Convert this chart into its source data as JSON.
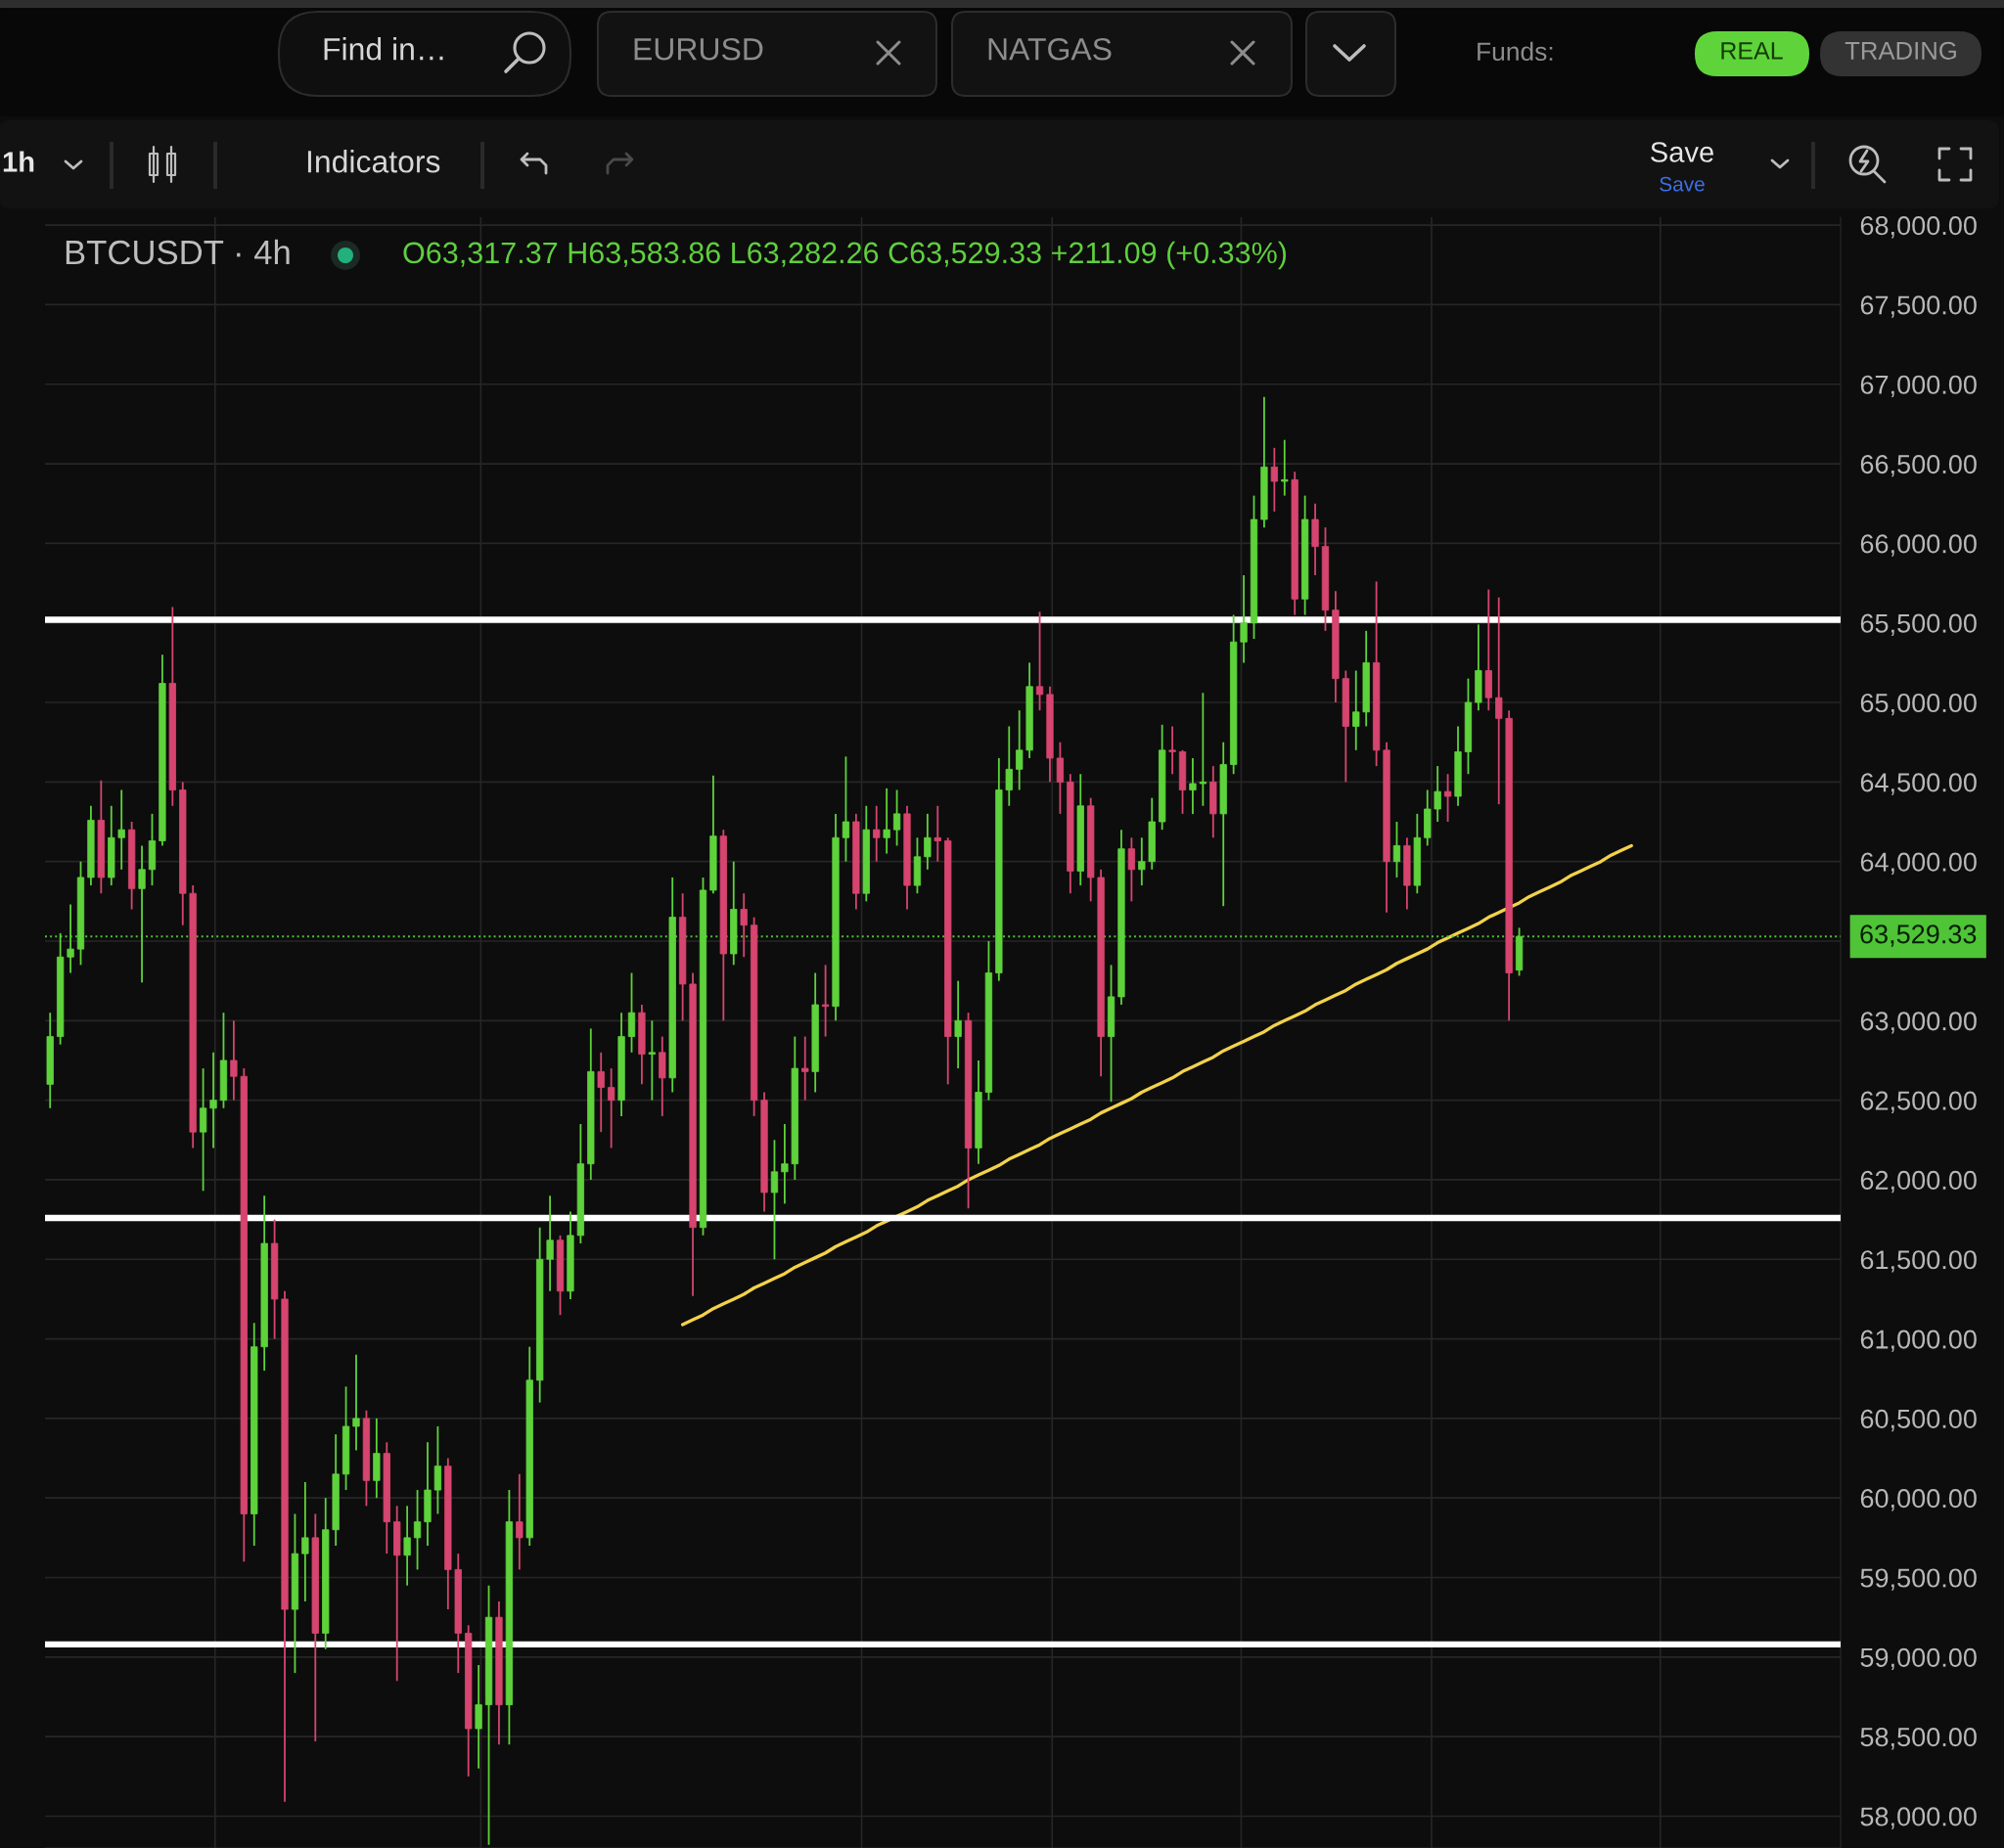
{
  "chart_data": {
    "type": "candlestick",
    "title": "BTCUSDT · 4h",
    "annotations": [
      "O63,317.37 H63,583.86 L63,282.26 C63,529.33 +211.09 (+0.33%)",
      "Find in…",
      "EURUSD",
      "NATGAS",
      "Funds:",
      "REAL",
      "TRADING",
      "1h",
      "Indicators",
      "Save",
      "Save"
    ],
    "categories": [
      null,
      null,
      null,
      null,
      null,
      null,
      null,
      null,
      null,
      null,
      null,
      null,
      null,
      null,
      null,
      null,
      null,
      null,
      null,
      null,
      null,
      null,
      null,
      null,
      null,
      null,
      null,
      null,
      null,
      null,
      null,
      null,
      null,
      null,
      null,
      null,
      null,
      null,
      null,
      null,
      null,
      null,
      null,
      null,
      null,
      null,
      null,
      null,
      null,
      null,
      null,
      null,
      null,
      null,
      null,
      null,
      null,
      null,
      null,
      null,
      null,
      null,
      null,
      null,
      null,
      null,
      null,
      null,
      null,
      null,
      null,
      null,
      null,
      null,
      null,
      null,
      null,
      null,
      null,
      null,
      null,
      null,
      null,
      null,
      null,
      null,
      null,
      null,
      null,
      null,
      null,
      null,
      null,
      null,
      null,
      null,
      null,
      null,
      null,
      null,
      null,
      null,
      null,
      null,
      null,
      null,
      null,
      null,
      null,
      null,
      null,
      null,
      null,
      null,
      null,
      null,
      null,
      null,
      null,
      null,
      null,
      null,
      null,
      null,
      null,
      null,
      null,
      null,
      null,
      null,
      null,
      null,
      null,
      null,
      null,
      null,
      null,
      null,
      null,
      null,
      null,
      null,
      null,
      null,
      null,
      null,
      null,
      null,
      null,
      null,
      null,
      null,
      null,
      null,
      null,
      null,
      null,
      null,
      null,
      null,
      null,
      null,
      null,
      null,
      null,
      null,
      null,
      null,
      null,
      null,
      null,
      null,
      null,
      null,
      null,
      null
    ],
    "ohlc": [
      [
        62600,
        63050,
        62450,
        62900
      ],
      [
        62900,
        63550,
        62850,
        63400
      ],
      [
        63400,
        63730,
        63300,
        63450
      ],
      [
        63450,
        64000,
        63350,
        63900
      ],
      [
        63900,
        64350,
        63850,
        64260
      ],
      [
        64260,
        64510,
        63800,
        63900
      ],
      [
        63900,
        64350,
        63850,
        64150
      ],
      [
        64150,
        64450,
        63950,
        64200
      ],
      [
        64200,
        64250,
        63700,
        63830
      ],
      [
        63830,
        64100,
        63240,
        63950
      ],
      [
        63950,
        64300,
        63850,
        64130
      ],
      [
        64130,
        65300,
        64100,
        65120
      ],
      [
        65120,
        65600,
        64350,
        64450
      ],
      [
        64450,
        64500,
        63600,
        63800
      ],
      [
        63800,
        63850,
        62200,
        62300
      ],
      [
        62300,
        62700,
        61930,
        62450
      ],
      [
        62450,
        62800,
        62200,
        62500
      ],
      [
        62500,
        63050,
        62450,
        62750
      ],
      [
        62750,
        63000,
        62500,
        62650
      ],
      [
        62650,
        62700,
        59600,
        59900
      ],
      [
        59900,
        61100,
        59700,
        60950
      ],
      [
        60950,
        61900,
        60800,
        61600
      ],
      [
        61600,
        61750,
        61000,
        61250
      ],
      [
        61250,
        61300,
        58090,
        59300
      ],
      [
        59300,
        59900,
        58900,
        59650
      ],
      [
        59650,
        60100,
        59350,
        59750
      ],
      [
        59750,
        59900,
        58470,
        59150
      ],
      [
        59150,
        60000,
        59050,
        59800
      ],
      [
        59800,
        60400,
        59700,
        60150
      ],
      [
        60150,
        60700,
        60050,
        60450
      ],
      [
        60450,
        60900,
        60300,
        60500
      ],
      [
        60500,
        60550,
        59950,
        60110
      ],
      [
        60110,
        60500,
        60000,
        60280
      ],
      [
        60280,
        60350,
        59650,
        59850
      ],
      [
        59850,
        59950,
        58850,
        59640
      ],
      [
        59640,
        59950,
        59450,
        59750
      ],
      [
        59750,
        60050,
        59550,
        59850
      ],
      [
        59850,
        60350,
        59700,
        60050
      ],
      [
        60050,
        60450,
        59900,
        60200
      ],
      [
        60200,
        60250,
        59300,
        59550
      ],
      [
        59550,
        59650,
        58900,
        59150
      ],
      [
        59150,
        59200,
        58250,
        58550
      ],
      [
        58550,
        58950,
        58300,
        58700
      ],
      [
        58700,
        59450,
        57820,
        59250
      ],
      [
        59250,
        59350,
        58450,
        58700
      ],
      [
        58700,
        60050,
        58450,
        59850
      ],
      [
        59850,
        60150,
        59550,
        59750
      ],
      [
        59750,
        60950,
        59700,
        60740
      ],
      [
        60740,
        61700,
        60600,
        61500
      ],
      [
        61500,
        61900,
        61300,
        61620
      ],
      [
        61620,
        61650,
        61150,
        61300
      ],
      [
        61300,
        61800,
        61250,
        61650
      ],
      [
        61650,
        62350,
        61600,
        62100
      ],
      [
        62100,
        62950,
        62000,
        62680
      ],
      [
        62680,
        62800,
        62300,
        62580
      ],
      [
        62580,
        62700,
        62200,
        62500
      ],
      [
        62500,
        63050,
        62400,
        62900
      ],
      [
        62900,
        63300,
        62800,
        63050
      ],
      [
        63050,
        63100,
        62600,
        62790
      ],
      [
        62790,
        63000,
        62500,
        62800
      ],
      [
        62800,
        62900,
        62400,
        62640
      ],
      [
        62640,
        63900,
        62550,
        63650
      ],
      [
        63650,
        63800,
        63000,
        63230
      ],
      [
        63230,
        63300,
        61270,
        61700
      ],
      [
        61700,
        63900,
        61650,
        63820
      ],
      [
        63820,
        64540,
        63800,
        64160
      ],
      [
        64160,
        64200,
        63000,
        63420
      ],
      [
        63420,
        64000,
        63350,
        63700
      ],
      [
        63700,
        63800,
        63400,
        63600
      ],
      [
        63600,
        63650,
        62400,
        62500
      ],
      [
        62500,
        62550,
        61800,
        61920
      ],
      [
        61920,
        62250,
        61500,
        62050
      ],
      [
        62050,
        62350,
        61850,
        62100
      ],
      [
        62100,
        62900,
        62000,
        62700
      ],
      [
        62700,
        62900,
        62500,
        62680
      ],
      [
        62680,
        63300,
        62550,
        63100
      ],
      [
        63100,
        63350,
        62900,
        63090
      ],
      [
        63090,
        64300,
        63000,
        64150
      ],
      [
        64150,
        64660,
        64000,
        64250
      ],
      [
        64250,
        64300,
        63700,
        63800
      ],
      [
        63800,
        64350,
        63750,
        64200
      ],
      [
        64200,
        64350,
        64000,
        64150
      ],
      [
        64150,
        64460,
        64050,
        64200
      ],
      [
        64200,
        64450,
        64100,
        64300
      ],
      [
        64300,
        64350,
        63700,
        63850
      ],
      [
        63850,
        64150,
        63800,
        64030
      ],
      [
        64030,
        64300,
        63950,
        64150
      ],
      [
        64150,
        64350,
        64000,
        64130
      ],
      [
        64130,
        64150,
        62600,
        62900
      ],
      [
        62900,
        63250,
        62700,
        63000
      ],
      [
        63000,
        63050,
        61820,
        62200
      ],
      [
        62200,
        62750,
        62100,
        62550
      ],
      [
        62550,
        63500,
        62500,
        63300
      ],
      [
        63300,
        64650,
        63250,
        64450
      ],
      [
        64450,
        64850,
        64350,
        64580
      ],
      [
        64580,
        64950,
        64450,
        64700
      ],
      [
        64700,
        65250,
        64650,
        65100
      ],
      [
        65100,
        65570,
        64950,
        65050
      ],
      [
        65050,
        65100,
        64500,
        64650
      ],
      [
        64650,
        64750,
        64300,
        64500
      ],
      [
        64500,
        64550,
        63800,
        63940
      ],
      [
        63940,
        64550,
        63850,
        64350
      ],
      [
        64350,
        64400,
        63750,
        63900
      ],
      [
        63900,
        63950,
        62650,
        62900
      ],
      [
        62900,
        63350,
        62490,
        63150
      ],
      [
        63150,
        64200,
        63100,
        64080
      ],
      [
        64080,
        64150,
        63750,
        63950
      ],
      [
        63950,
        64150,
        63850,
        64000
      ],
      [
        64000,
        64400,
        63950,
        64250
      ],
      [
        64250,
        64860,
        64200,
        64700
      ],
      [
        64700,
        64850,
        64550,
        64690
      ],
      [
        64690,
        64700,
        64300,
        64450
      ],
      [
        64450,
        64650,
        64300,
        64490
      ],
      [
        64490,
        65060,
        64350,
        64500
      ],
      [
        64500,
        64600,
        64150,
        64300
      ],
      [
        64300,
        64750,
        63720,
        64610
      ],
      [
        64610,
        65550,
        64550,
        65380
      ],
      [
        65380,
        65800,
        65250,
        65500
      ],
      [
        65500,
        66300,
        65400,
        66150
      ],
      [
        66150,
        66920,
        66100,
        66480
      ],
      [
        66480,
        66600,
        66200,
        66390
      ],
      [
        66390,
        66650,
        66300,
        66400
      ],
      [
        66400,
        66450,
        65550,
        65650
      ],
      [
        65650,
        66300,
        65550,
        66150
      ],
      [
        66150,
        66250,
        65800,
        65980
      ],
      [
        65980,
        66100,
        65450,
        65580
      ],
      [
        65580,
        65700,
        65000,
        65150
      ],
      [
        65150,
        65200,
        64500,
        64850
      ],
      [
        64850,
        65200,
        64700,
        64940
      ],
      [
        64940,
        65450,
        64850,
        65250
      ],
      [
        65250,
        65760,
        64600,
        64700
      ],
      [
        64700,
        64750,
        63680,
        64000
      ],
      [
        64000,
        64250,
        63900,
        64100
      ],
      [
        64100,
        64150,
        63700,
        63850
      ],
      [
        63850,
        64300,
        63800,
        64150
      ],
      [
        64150,
        64450,
        64100,
        64330
      ],
      [
        64330,
        64600,
        64250,
        64440
      ],
      [
        64440,
        64550,
        64250,
        64410
      ],
      [
        64410,
        64850,
        64350,
        64690
      ],
      [
        64690,
        65150,
        64550,
        65000
      ],
      [
        65000,
        65490,
        64950,
        65200
      ],
      [
        65200,
        65710,
        64950,
        65030
      ],
      [
        65030,
        65660,
        64360,
        64900
      ],
      [
        64900,
        64950,
        63000,
        63300
      ],
      [
        63317.37,
        63583.86,
        63282.26,
        63529.33
      ],
      null,
      null,
      null,
      null,
      null,
      null,
      null,
      null,
      null,
      null,
      null,
      null,
      null,
      null,
      null,
      null,
      null,
      null,
      null,
      null,
      null,
      null,
      null,
      null,
      null,
      null,
      null,
      null,
      null,
      null,
      null
    ],
    "colors": [
      "#5ed23b",
      "#5ed23b",
      "#5ed23b",
      "#5ed23b",
      "#5ed23b",
      "#d6456f",
      "#5ed23b",
      "#5ed23b",
      "#d6456f",
      "#5ed23b",
      "#5ed23b",
      "#5ed23b",
      "#d6456f",
      "#d6456f",
      "#d6456f",
      "#5ed23b",
      "#5ed23b",
      "#5ed23b",
      "#d6456f",
      "#d6456f",
      "#5ed23b",
      "#5ed23b",
      "#d6456f",
      "#d6456f",
      "#5ed23b",
      "#5ed23b",
      "#d6456f",
      "#5ed23b",
      "#5ed23b",
      "#5ed23b",
      "#5ed23b",
      "#d6456f",
      "#5ed23b",
      "#d6456f",
      "#d6456f",
      "#5ed23b",
      "#5ed23b",
      "#5ed23b",
      "#5ed23b",
      "#d6456f",
      "#d6456f",
      "#d6456f",
      "#5ed23b",
      "#5ed23b",
      "#d6456f",
      "#5ed23b",
      "#d6456f",
      "#5ed23b",
      "#5ed23b",
      "#5ed23b",
      "#d6456f",
      "#5ed23b",
      "#5ed23b",
      "#5ed23b",
      "#d6456f",
      "#d6456f",
      "#5ed23b",
      "#5ed23b",
      "#d6456f",
      "#5ed23b",
      "#d6456f",
      "#5ed23b",
      "#d6456f",
      "#d6456f",
      "#5ed23b",
      "#5ed23b",
      "#d6456f",
      "#5ed23b",
      "#d6456f",
      "#d6456f",
      "#d6456f",
      "#5ed23b",
      "#5ed23b",
      "#5ed23b",
      "#d6456f",
      "#5ed23b",
      "#d6456f",
      "#5ed23b",
      "#5ed23b",
      "#d6456f",
      "#5ed23b",
      "#d6456f",
      "#5ed23b",
      "#5ed23b",
      "#d6456f",
      "#5ed23b",
      "#5ed23b",
      "#d6456f",
      "#d6456f",
      "#5ed23b",
      "#d6456f",
      "#5ed23b",
      "#5ed23b",
      "#5ed23b",
      "#5ed23b",
      "#5ed23b",
      "#5ed23b",
      "#d6456f",
      "#d6456f",
      "#d6456f",
      "#d6456f",
      "#5ed23b",
      "#d6456f",
      "#d6456f",
      "#5ed23b",
      "#5ed23b",
      "#d6456f",
      "#5ed23b",
      "#5ed23b",
      "#5ed23b",
      "#d6456f",
      "#d6456f",
      "#5ed23b",
      "#5ed23b",
      "#d6456f",
      "#5ed23b",
      "#5ed23b",
      "#5ed23b",
      "#5ed23b",
      "#5ed23b",
      "#d6456f",
      "#5ed23b",
      "#d6456f",
      "#5ed23b",
      "#d6456f",
      "#d6456f",
      "#d6456f",
      "#d6456f",
      "#5ed23b",
      "#5ed23b",
      "#d6456f",
      "#d6456f",
      "#5ed23b",
      "#d6456f",
      "#5ed23b",
      "#5ed23b",
      "#5ed23b",
      "#d6456f",
      "#5ed23b",
      "#5ed23b",
      "#5ed23b",
      "#d6456f",
      "#d6456f",
      "#d6456f",
      "#5ed23b",
      null,
      null,
      null,
      null,
      null,
      null,
      null,
      null,
      null,
      null,
      null,
      null,
      null,
      null,
      null,
      null,
      null,
      null,
      null,
      null,
      null,
      null,
      null,
      null,
      null,
      null,
      null,
      null,
      null,
      null,
      null
    ],
    "series": [
      {
        "type": "line",
        "color": "#f2d24a",
        "values": [
          null,
          null,
          null,
          null,
          null,
          null,
          null,
          null,
          null,
          null,
          null,
          null,
          null,
          null,
          null,
          null,
          null,
          null,
          null,
          null,
          null,
          null,
          null,
          null,
          null,
          null,
          null,
          null,
          null,
          null,
          null,
          null,
          null,
          null,
          null,
          null,
          null,
          null,
          null,
          null,
          null,
          null,
          null,
          null,
          null,
          null,
          null,
          null,
          null,
          null,
          null,
          null,
          null,
          null,
          null,
          null,
          null,
          null,
          null,
          null,
          null,
          null,
          61090,
          61120,
          61150,
          61190,
          61220,
          61250,
          61280,
          61320,
          61350,
          61380,
          61410,
          61450,
          61480,
          61510,
          61540,
          61580,
          61610,
          61640,
          61670,
          61710,
          61740,
          61770,
          61800,
          61830,
          61870,
          61900,
          61930,
          61960,
          62000,
          62030,
          62060,
          62090,
          62130,
          62160,
          62190,
          62220,
          62260,
          62290,
          62320,
          62350,
          62380,
          62420,
          62450,
          62480,
          62510,
          62550,
          62580,
          62610,
          62640,
          62680,
          62710,
          62740,
          62770,
          62810,
          62840,
          62870,
          62900,
          62930,
          62970,
          63000,
          63030,
          63060,
          63100,
          63130,
          63160,
          63190,
          63230,
          63260,
          63290,
          63320,
          63360,
          63390,
          63420,
          63450,
          63490,
          63520,
          63550,
          63580,
          63610,
          63650,
          63680,
          63710,
          63740,
          63780,
          63810,
          63840,
          63870,
          63910,
          63940,
          63970,
          64000,
          64040,
          64070,
          64100,
          null,
          null,
          null,
          null,
          null,
          null,
          null,
          null,
          null,
          null,
          null,
          null,
          null,
          null,
          null,
          null,
          null,
          null,
          null,
          null
        ]
      }
    ],
    "ylim": [
      57800,
      68050
    ],
    "yticks": [
      {
        "value": 58000,
        "label": "58,000.00"
      },
      {
        "value": 58500,
        "label": "58,500.00"
      },
      {
        "value": 59000,
        "label": "59,000.00"
      },
      {
        "value": 59500,
        "label": "59,500.00"
      },
      {
        "value": 60000,
        "label": "60,000.00"
      },
      {
        "value": 60500,
        "label": "60,500.00"
      },
      {
        "value": 61000,
        "label": "61,000.00"
      },
      {
        "value": 61500,
        "label": "61,500.00"
      },
      {
        "value": 62000,
        "label": "62,000.00"
      },
      {
        "value": 62500,
        "label": "62,500.00"
      },
      {
        "value": 63000,
        "label": "63,000.00"
      },
      {
        "value": 63500,
        "label": null
      },
      {
        "value": 64000,
        "label": "64,000.00"
      },
      {
        "value": 64500,
        "label": "64,500.00"
      },
      {
        "value": 65000,
        "label": "65,000.00"
      },
      {
        "value": 65500,
        "label": "65,500.00"
      },
      {
        "value": 66000,
        "label": "66,000.00"
      },
      {
        "value": 66500,
        "label": "66,500.00"
      },
      {
        "value": 67000,
        "label": "67,000.00"
      },
      {
        "value": 67500,
        "label": "67,500.00"
      },
      {
        "value": 68000,
        "label": "68,000.00"
      }
    ],
    "ref_lines": [
      {
        "axis": "y",
        "value": 63529.33,
        "label": "63,529.33",
        "color": "#4fc437",
        "line_style": "dotted"
      },
      {
        "axis": "y",
        "value": 65520,
        "color": "#ffffff",
        "line_style": "solid"
      },
      {
        "axis": "y",
        "value": 61760,
        "color": "#ffffff",
        "line_style": "solid"
      },
      {
        "axis": "y",
        "value": 59080,
        "color": "#ffffff",
        "line_style": "solid"
      }
    ],
    "grid": true,
    "tick_labels": "y"
  }
}
